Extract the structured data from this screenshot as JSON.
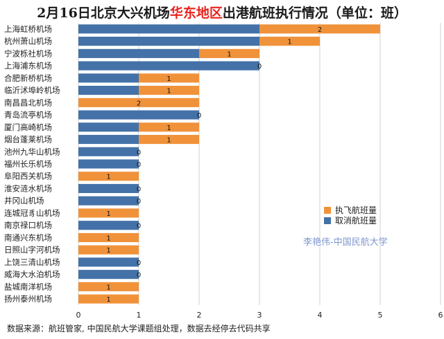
{
  "title": {
    "prefix": "2月16日北京大兴机场",
    "highlight": "华东地区",
    "suffix": "出港航班执行情况（单位：班）"
  },
  "source": "数据来源：航班管家, 中国民航大学课题组处理，数据去经停去代码共享",
  "watermark": "李艳伟-中国民航大学",
  "colors": {
    "cancelled": "#4472a8",
    "executed": "#f0923a",
    "highlight": "#e8221c",
    "grid": "#d0d0d0"
  },
  "chart_data": {
    "type": "bar",
    "orientation": "horizontal",
    "stacked": true,
    "categories": [
      "上海虹桥机场",
      "杭州萧山机场",
      "宁波栎社机场",
      "上海浦东机场",
      "合肥新桥机场",
      "临沂沭埠岭机场",
      "南昌昌北机场",
      "青岛流亭机场",
      "厦门高崎机场",
      "烟台蓬莱机场",
      "池州九华山机场",
      "福州长乐机场",
      "阜阳西关机场",
      "淮安涟水机场",
      "井冈山机场",
      "连城冠豸山机场",
      "南京禄口机场",
      "南通兴东机场",
      "日照山字河机场",
      "上饶三清山机场",
      "威海大水泊机场",
      "盐城南洋机场",
      "扬州泰州机场"
    ],
    "series": [
      {
        "name": "取消航班量",
        "key": "cancelled",
        "values": [
          3,
          3,
          2,
          3,
          1,
          1,
          0,
          2,
          1,
          1,
          1,
          1,
          0,
          1,
          1,
          0,
          1,
          0,
          0,
          1,
          1,
          0,
          0
        ]
      },
      {
        "name": "执飞航班量",
        "key": "executed",
        "values": [
          2,
          1,
          1,
          0,
          1,
          1,
          2,
          0,
          1,
          1,
          0,
          0,
          1,
          0,
          0,
          1,
          0,
          1,
          1,
          0,
          0,
          1,
          1
        ]
      }
    ],
    "data_labels": "执飞航班量",
    "xlim": [
      0,
      6
    ],
    "xticks": [
      0,
      1,
      2,
      3,
      4,
      5,
      6
    ],
    "grid": true,
    "legend_position": "right"
  }
}
